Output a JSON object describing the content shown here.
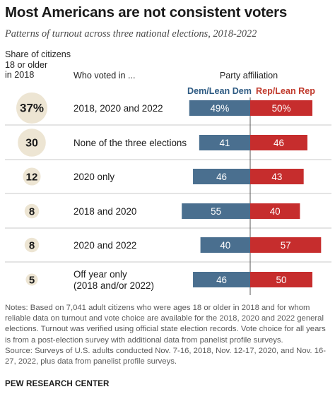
{
  "title": "Most Americans are not consistent voters",
  "subtitle": "Patterns of turnout across three national elections, 2018-2022",
  "headers": {
    "share": "Share of citizens\n18 or older\nin 2018",
    "who_voted": "Who voted in ...",
    "party": "Party affiliation",
    "dem": "Dem/Lean Dem",
    "rep": "Rep/Lean Rep"
  },
  "colors": {
    "dem": "#4a6f8f",
    "rep": "#c62d2d",
    "bubble": "#ede5d3",
    "divider": "#c9c9c9"
  },
  "chart_data": {
    "type": "bar",
    "categories": [
      "2018, 2020 and 2022",
      "None of the three elections",
      "2020 only",
      "2018 and 2020",
      "2020 and 2022",
      "Off year only\n(2018 and/or 2022)"
    ],
    "share_labels": [
      "37%",
      "30",
      "12",
      "8",
      "8",
      "5"
    ],
    "share": [
      37,
      30,
      12,
      8,
      8,
      5
    ],
    "series": [
      {
        "name": "Dem/Lean Dem",
        "values": [
          49,
          41,
          46,
          55,
          40,
          46
        ],
        "labels": [
          "49%",
          "41",
          "46",
          "55",
          "40",
          "46"
        ]
      },
      {
        "name": "Rep/Lean Rep",
        "values": [
          50,
          46,
          43,
          40,
          57,
          50
        ],
        "labels": [
          "50%",
          "46",
          "43",
          "40",
          "57",
          "50"
        ]
      }
    ]
  },
  "notes": "Notes: Based on 7,041 adult citizens who were ages 18 or older in 2018 and for whom reliable data on turnout and vote choice are available for the 2018, 2020 and 2022 general elections. Turnout was verified using official state election records. Vote choice for all years is from a post-election survey with additional data from panelist profile surveys.",
  "source": "Source: Surveys of U.S. adults conducted Nov. 7-16, 2018, Nov. 12-17, 2020, and Nov. 16-27, 2022, plus data from panelist profile surveys.",
  "footer": "PEW RESEARCH CENTER"
}
